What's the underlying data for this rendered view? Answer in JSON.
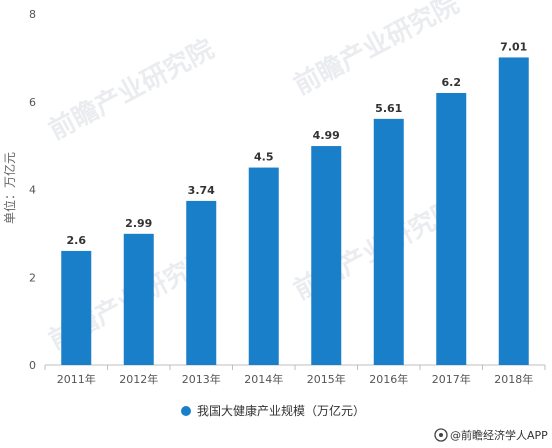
{
  "chart_data": {
    "type": "bar",
    "categories": [
      "2011年",
      "2012年",
      "2013年",
      "2014年",
      "2015年",
      "2016年",
      "2017年",
      "2018年"
    ],
    "series": [
      {
        "name": "我国大健康产业规模（万亿元）",
        "values": [
          2.6,
          2.99,
          3.74,
          4.5,
          4.99,
          5.61,
          6.2,
          7.01
        ]
      }
    ],
    "ylabel": "单位：万亿元",
    "ylim": [
      0,
      8
    ],
    "yticks": [
      0,
      2,
      4,
      6,
      8
    ],
    "grid": false,
    "legend_position": "bottom-center",
    "bar_color": "#1a7fc9"
  },
  "watermark": {
    "text": "前瞻产业研究院"
  },
  "footer": {
    "source": "@前瞻经济学人APP"
  }
}
